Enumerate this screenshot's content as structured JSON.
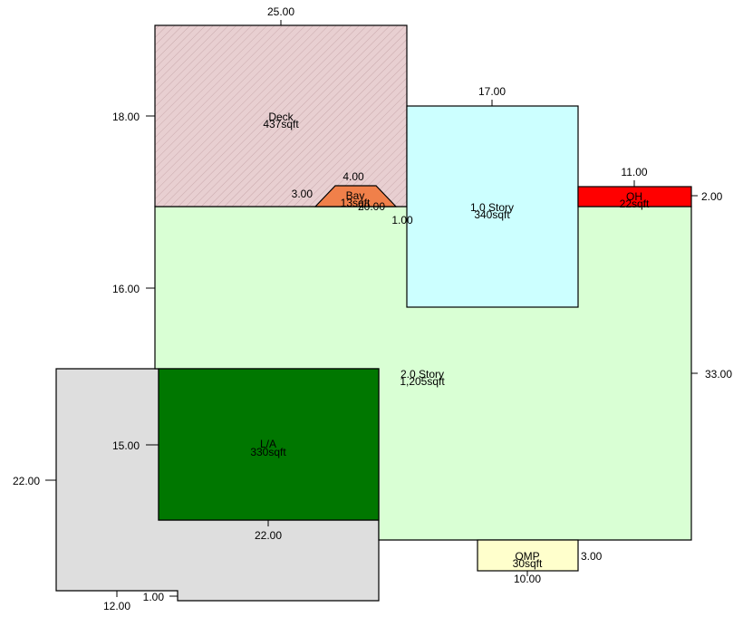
{
  "areas": {
    "deck": {
      "name": "Deck",
      "area": "437sqft",
      "fill": "#e8cfd1",
      "pattern": "diagonal-hatch"
    },
    "bay": {
      "name": "Bay",
      "area": "13sqft",
      "fill": "#f0804a"
    },
    "one_story": {
      "name": "1.0 Story",
      "area": "340sqft",
      "fill": "#ccffff"
    },
    "oh": {
      "name": "OH",
      "area": "22sqft",
      "fill": "#ff0000"
    },
    "two_story": {
      "name": "2.0 Story",
      "area": "1,205sqft",
      "fill": "#d9ffd4"
    },
    "la": {
      "name": "L/A",
      "area": "330sqft",
      "fill": "#007700"
    },
    "omp": {
      "name": "OMP",
      "area": "30sqft",
      "fill": "#ffffcc"
    },
    "gray": {
      "fill": "#dedede"
    }
  },
  "dimensions": {
    "deck_top": "25.00",
    "deck_left": "18.00",
    "one_story_top": "17.00",
    "oh_top": "11.00",
    "oh_right": "2.00",
    "bay_top": "4.00",
    "bay_left": "3.00",
    "bay_inner": "20.00",
    "bay_small": "1.00",
    "two_story_left": "16.00",
    "two_story_right": "33.00",
    "la_left": "15.00",
    "la_bottom": "22.00",
    "gray_left": "22.00",
    "gray_bottom": "12.00",
    "gray_notch": "1.00",
    "omp_right": "3.00",
    "omp_bottom": "10.00"
  }
}
